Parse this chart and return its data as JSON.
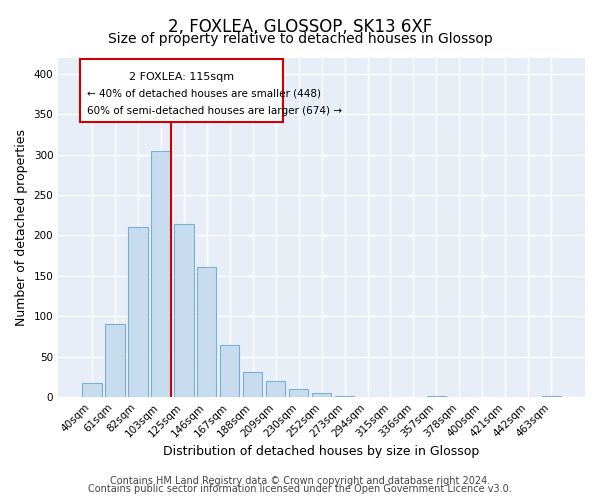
{
  "title": "2, FOXLEA, GLOSSOP, SK13 6XF",
  "subtitle": "Size of property relative to detached houses in Glossop",
  "xlabel": "Distribution of detached houses by size in Glossop",
  "ylabel": "Number of detached properties",
  "bar_labels": [
    "40sqm",
    "61sqm",
    "82sqm",
    "103sqm",
    "125sqm",
    "146sqm",
    "167sqm",
    "188sqm",
    "209sqm",
    "230sqm",
    "252sqm",
    "273sqm",
    "294sqm",
    "315sqm",
    "336sqm",
    "357sqm",
    "378sqm",
    "400sqm",
    "421sqm",
    "442sqm",
    "463sqm"
  ],
  "bar_values": [
    17,
    90,
    211,
    305,
    214,
    161,
    64,
    31,
    20,
    10,
    5,
    2,
    0,
    0,
    0,
    1,
    0,
    0,
    0,
    0,
    2
  ],
  "bar_color": "#c8dcef",
  "bar_edge_color": "#7aafd4",
  "vline_index": 3,
  "vline_color": "#cc0000",
  "annot_line1": "2 FOXLEA: 115sqm",
  "annot_line2": "← 40% of detached houses are smaller (448)",
  "annot_line3": "60% of semi-detached houses are larger (674) →",
  "ylim": [
    0,
    420
  ],
  "yticks": [
    0,
    50,
    100,
    150,
    200,
    250,
    300,
    350,
    400
  ],
  "footer_line1": "Contains HM Land Registry data © Crown copyright and database right 2024.",
  "footer_line2": "Contains public sector information licensed under the Open Government Licence v3.0.",
  "background_color": "#ffffff",
  "plot_background_color": "#e8eef8",
  "grid_color": "#ffffff",
  "title_fontsize": 12,
  "subtitle_fontsize": 10,
  "axis_label_fontsize": 9,
  "tick_fontsize": 7.5,
  "footer_fontsize": 7,
  "annot_fontsize": 8
}
